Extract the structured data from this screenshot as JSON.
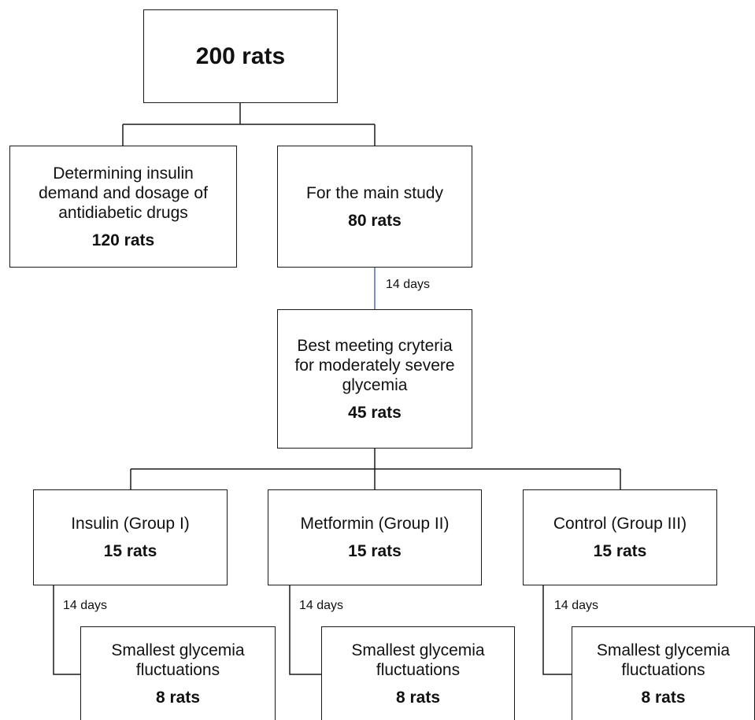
{
  "root": {
    "count": "200 rats"
  },
  "dosing": {
    "lines": [
      "Determining insulin",
      "demand and dosage of",
      "antidiabetic drugs"
    ],
    "count": "120  rats"
  },
  "main_study": {
    "label": "For the main study",
    "count": "80 rats"
  },
  "interval_1": "14 days",
  "criteria": {
    "lines": [
      "Best meeting cryteria",
      "for moderately severe",
      "glycemia"
    ],
    "count": "45 rats"
  },
  "groups": [
    {
      "label": "Insulin (Group I)",
      "count": "15 rats",
      "interval": "14 days",
      "outcome": {
        "lines": [
          "Smallest glycemia",
          "fluctuations"
        ],
        "count": "8 rats"
      }
    },
    {
      "label": "Metformin (Group II)",
      "count": "15 rats",
      "interval": "14 days",
      "outcome": {
        "lines": [
          "Smallest glycemia",
          "fluctuations"
        ],
        "count": "8 rats"
      }
    },
    {
      "label": "Control (Group III)",
      "count": "15 rats",
      "interval": "14 days",
      "outcome": {
        "lines": [
          "Smallest glycemia",
          "fluctuations"
        ],
        "count": "8 rats"
      }
    }
  ],
  "colors": {
    "box_border": "#1a1a1a",
    "connector": "#1a1a1a",
    "interval_connector": "#4a6fa5"
  }
}
